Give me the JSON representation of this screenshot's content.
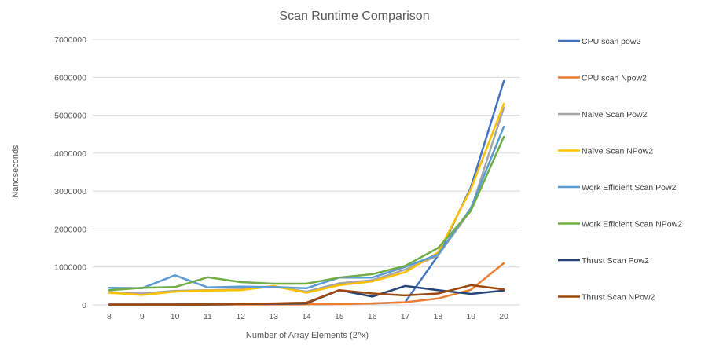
{
  "chart_data": {
    "type": "line",
    "title": "Scan Runtime Comparison",
    "xlabel": "Number of Array Elements (2^x)",
    "ylabel": "Nanoseconds",
    "x": [
      8,
      9,
      10,
      11,
      12,
      13,
      14,
      15,
      16,
      17,
      18,
      19,
      20
    ],
    "ylim": [
      0,
      7000000
    ],
    "yticks": [
      "0",
      "1000000",
      "2000000",
      "3000000",
      "4000000",
      "5000000",
      "6000000",
      "7000000"
    ],
    "grid": "horizontal",
    "legend_position": "right",
    "series": [
      {
        "name": "CPU scan pow2",
        "color": "#4472C4",
        "values": [
          5000,
          6000,
          8000,
          10000,
          12000,
          15000,
          20000,
          30000,
          40000,
          70000,
          1300000,
          3100000,
          5900000
        ]
      },
      {
        "name": "CPU scan Npow2",
        "color": "#ED7D31",
        "values": [
          5000,
          5000,
          7000,
          8000,
          10000,
          12000,
          15000,
          20000,
          40000,
          70000,
          170000,
          400000,
          1100000
        ]
      },
      {
        "name": "Naïve Scan Pow2",
        "color": "#A5A5A5",
        "values": [
          340000,
          300000,
          370000,
          390000,
          410000,
          480000,
          350000,
          570000,
          650000,
          930000,
          1300000,
          2500000,
          5200000
        ]
      },
      {
        "name": "Naïve Scan NPow2",
        "color": "#FFC000",
        "values": [
          320000,
          260000,
          350000,
          380000,
          390000,
          500000,
          320000,
          520000,
          620000,
          860000,
          1380000,
          3050000,
          5300000
        ]
      },
      {
        "name": "Work Efficient Scan Pow2",
        "color": "#5B9BD5",
        "values": [
          450000,
          440000,
          780000,
          460000,
          480000,
          470000,
          440000,
          720000,
          720000,
          1000000,
          1330000,
          2550000,
          4700000
        ]
      },
      {
        "name": "Work Efficient Scan NPow2",
        "color": "#70AD47",
        "values": [
          390000,
          450000,
          470000,
          730000,
          600000,
          560000,
          560000,
          720000,
          810000,
          1030000,
          1500000,
          2480000,
          4430000
        ]
      },
      {
        "name": "Thrust Scan Pow2",
        "color": "#264478",
        "values": [
          10000,
          10000,
          10000,
          10000,
          30000,
          30000,
          40000,
          390000,
          220000,
          500000,
          390000,
          290000,
          380000
        ]
      },
      {
        "name": "Thrust Scan NPow2",
        "color": "#9E480E",
        "values": [
          10000,
          10000,
          10000,
          15000,
          30000,
          40000,
          60000,
          390000,
          300000,
          250000,
          300000,
          520000,
          410000
        ]
      }
    ]
  }
}
